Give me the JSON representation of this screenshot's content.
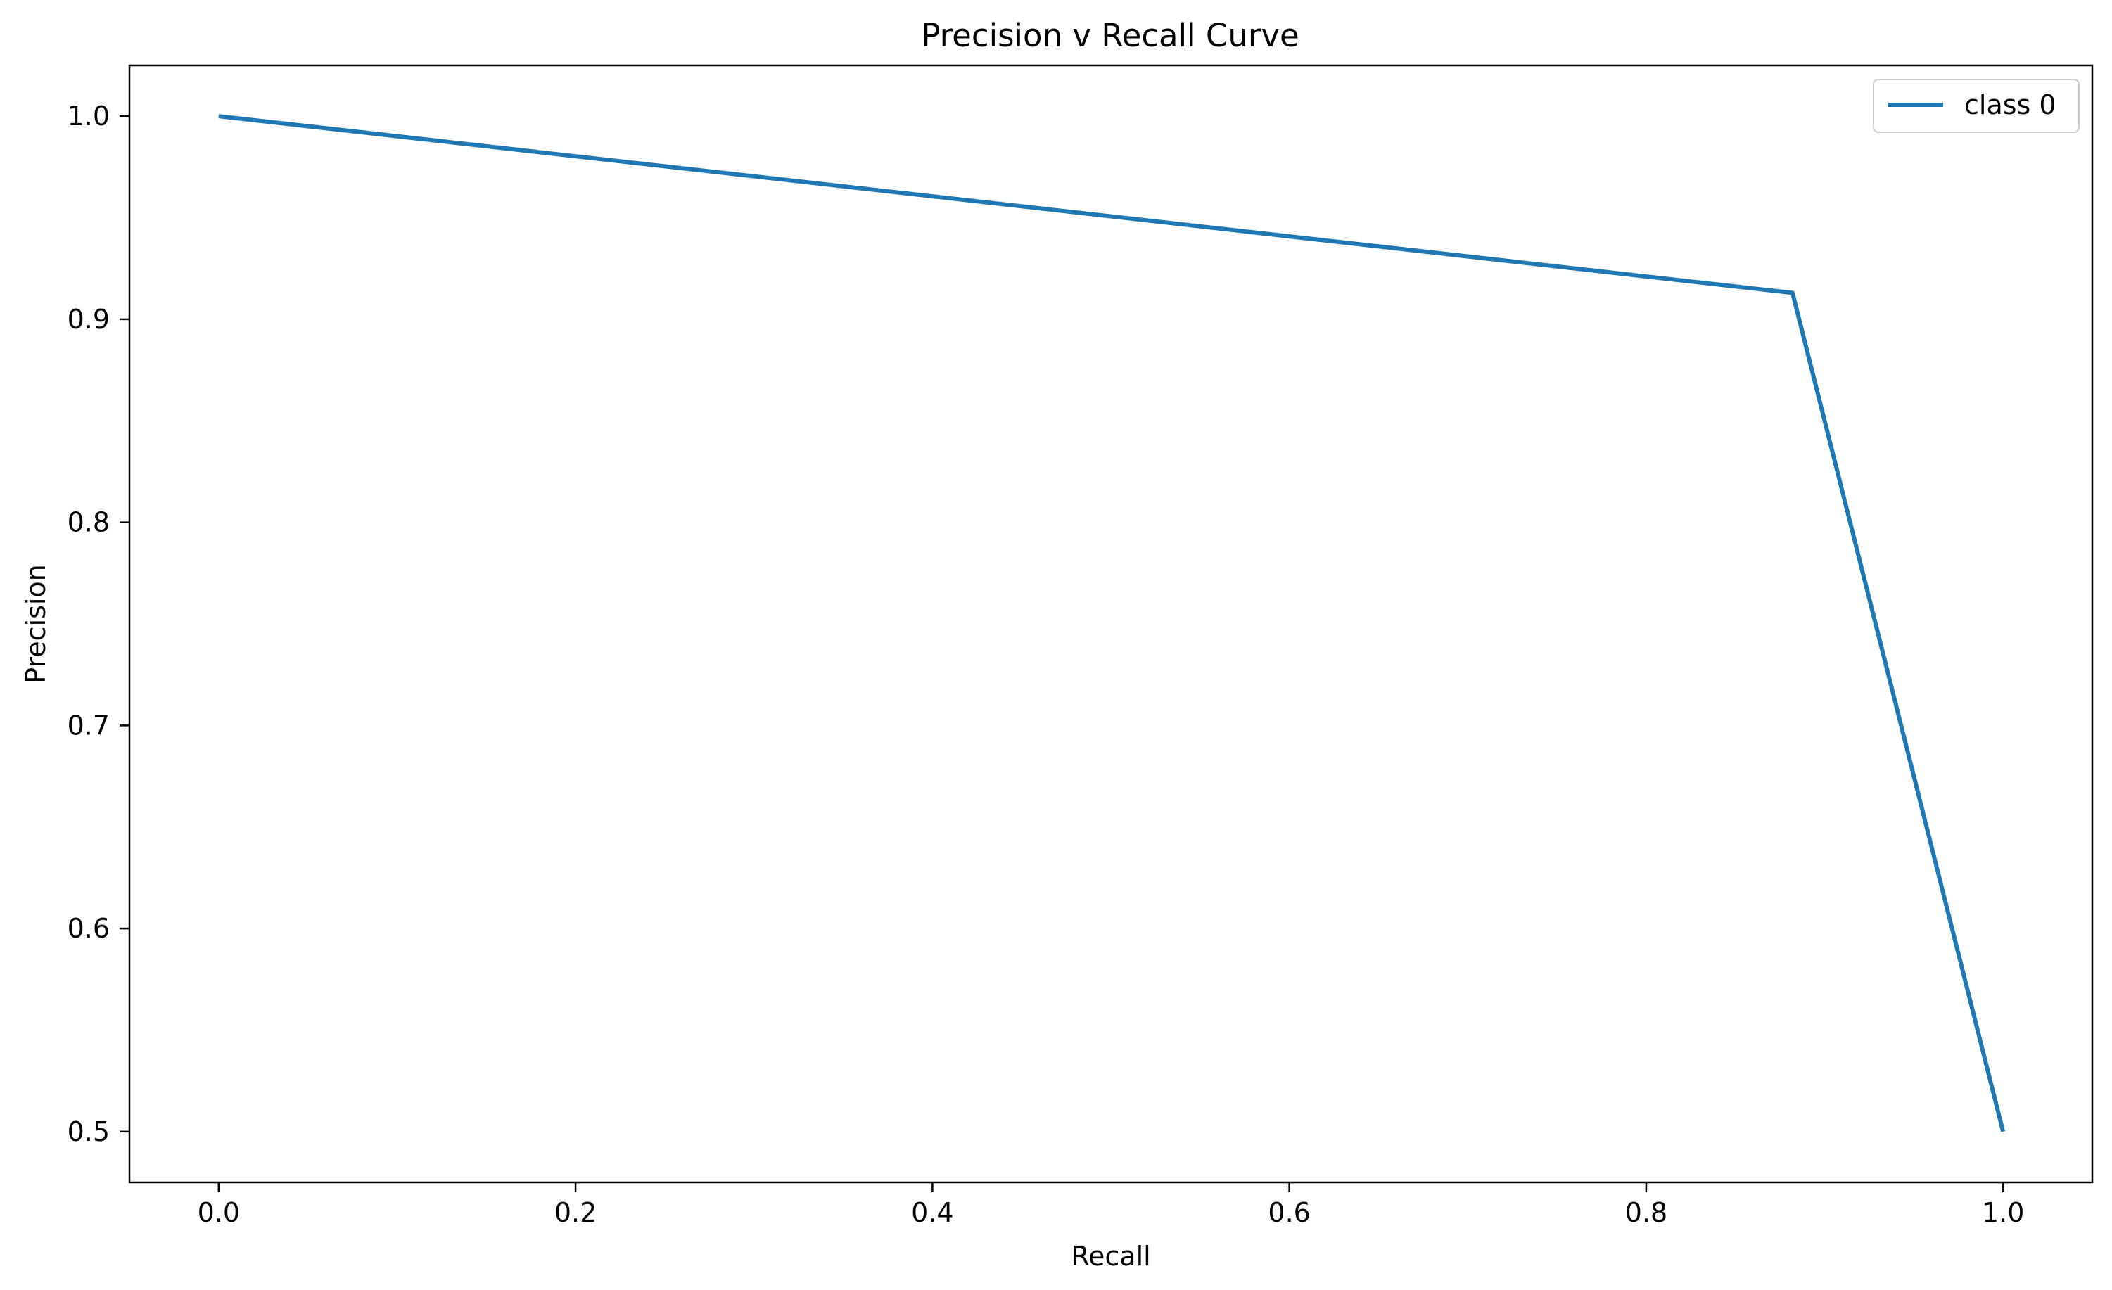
{
  "chart_data": {
    "type": "line",
    "title": "Precision v Recall Curve",
    "xlabel": "Recall",
    "ylabel": "Precision",
    "xlim": [
      -0.05,
      1.05
    ],
    "ylim": [
      0.475,
      1.025
    ],
    "xticks": [
      0.0,
      0.2,
      0.4,
      0.6,
      0.8,
      1.0
    ],
    "xtick_labels": [
      "0.0",
      "0.2",
      "0.4",
      "0.6",
      "0.8",
      "1.0"
    ],
    "yticks": [
      0.5,
      0.6,
      0.7,
      0.8,
      0.9,
      1.0
    ],
    "ytick_labels": [
      "0.5",
      "0.6",
      "0.7",
      "0.8",
      "0.9",
      "1.0"
    ],
    "grid": false,
    "legend_position": "top-right",
    "series": [
      {
        "name": "class 0",
        "color": "#1f77b4",
        "x": [
          0.0,
          0.882,
          1.0
        ],
        "y": [
          1.0,
          0.913,
          0.5
        ]
      }
    ]
  }
}
